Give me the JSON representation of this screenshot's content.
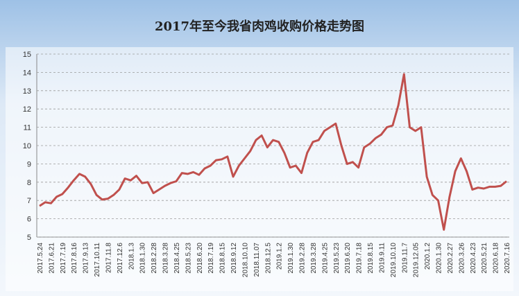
{
  "chart_data": {
    "type": "line",
    "title": "2017年至今我省肉鸡收购价格走势图",
    "categories": [
      "2017.5.24",
      null,
      "2017.6.21",
      null,
      "2017.7.19",
      null,
      "2017.8.16",
      null,
      "2017.9.13",
      null,
      "2017.10.11",
      null,
      "2017.11.8",
      null,
      "2017.12.6",
      null,
      "2018.1.3",
      null,
      "2018.1.30",
      null,
      "2018.2.28",
      null,
      "2018.3.28",
      null,
      "2018.4.25",
      null,
      "2018.5.23",
      null,
      "2018.6.20",
      null,
      "2018.7.19",
      null,
      "2018.8.15",
      null,
      "2018.9.12",
      null,
      "2018.10.10",
      null,
      "2018.11.07",
      null,
      "2018.12.5",
      null,
      "2019.1.2",
      null,
      "2019.1.30",
      null,
      "2019.2.28",
      null,
      "2019.3.28",
      null,
      "2019.4.25",
      null,
      "2019.5.23",
      null,
      "2019.6.20",
      null,
      "2019.7.18",
      null,
      "2019.8.15",
      null,
      "2019.9.11",
      null,
      "2019.10.10",
      null,
      "2019.11.7",
      null,
      "2019.12.05",
      null,
      "2020.1.2",
      null,
      "2020.1.30",
      null,
      "2020.2.27",
      null,
      "2020.3.26",
      null,
      "2020.4.23",
      null,
      "2020.5.21",
      null,
      "2020.6.18",
      null,
      "2020.7.16"
    ],
    "series": [
      {
        "color": "#c0504d",
        "values": [
          6.7,
          6.9,
          6.85,
          7.2,
          7.35,
          7.7,
          8.1,
          8.45,
          8.3,
          7.9,
          7.3,
          7.05,
          7.1,
          7.3,
          7.6,
          8.2,
          8.1,
          8.35,
          7.95,
          8.0,
          7.4,
          7.6,
          7.8,
          7.95,
          8.05,
          8.5,
          8.45,
          8.55,
          8.4,
          8.75,
          8.9,
          9.2,
          9.25,
          9.4,
          8.3,
          8.9,
          9.3,
          9.7,
          10.3,
          10.55,
          9.9,
          10.3,
          10.2,
          9.6,
          8.8,
          8.9,
          8.5,
          9.6,
          10.2,
          10.3,
          10.8,
          11.0,
          11.2,
          10.0,
          9.0,
          9.1,
          8.8,
          9.9,
          10.1,
          10.4,
          10.6,
          11.0,
          11.1,
          12.2,
          13.9,
          11.0,
          10.8,
          11.0,
          8.3,
          7.3,
          7.0,
          5.4,
          7.2,
          8.6,
          9.3,
          8.6,
          7.6,
          7.7,
          7.65,
          7.75,
          7.75,
          7.8,
          8.05
        ]
      }
    ],
    "ylim": [
      5,
      15
    ],
    "yticks": [
      5,
      6,
      7,
      8,
      9,
      10,
      11,
      12,
      13,
      14,
      15
    ],
    "grid": true
  }
}
